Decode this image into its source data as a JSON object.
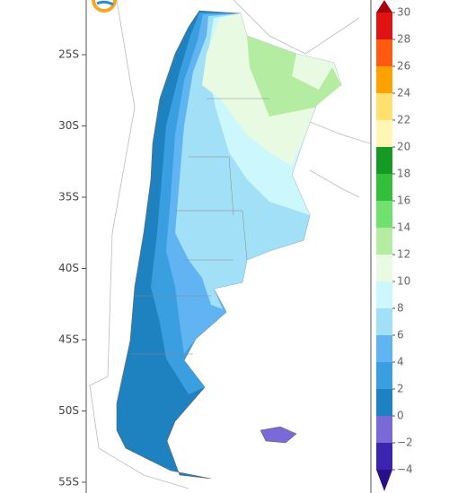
{
  "map": {
    "lat_ticks": [
      {
        "value": -25,
        "label": "25S"
      },
      {
        "value": -30,
        "label": "30S"
      },
      {
        "value": -35,
        "label": "35S"
      },
      {
        "value": -40,
        "label": "40S"
      },
      {
        "value": -45,
        "label": "45S"
      },
      {
        "value": -50,
        "label": "50S"
      },
      {
        "value": -55,
        "label": "55S"
      }
    ],
    "colorbar": {
      "ticks": [
        {
          "value": -4,
          "label": "−4"
        },
        {
          "value": -2,
          "label": "−2"
        },
        0,
        2,
        4,
        6,
        8,
        10,
        12,
        14,
        16,
        18,
        20,
        22,
        24,
        26,
        28,
        30
      ],
      "colors": [
        "#2a0f8c",
        "#3a24b0",
        "#7a6ad8",
        "#1f82c0",
        "#3a9fe0",
        "#60b4f2",
        "#a2e0f7",
        "#ccf8fd",
        "#e8fbe2",
        "#b4eca2",
        "#70e06e",
        "#32c03a",
        "#169a26",
        "#fff6b4",
        "#ffe06e",
        "#ffa200",
        "#ff5a10",
        "#e01212",
        "#a8000e"
      ]
    }
  }
}
